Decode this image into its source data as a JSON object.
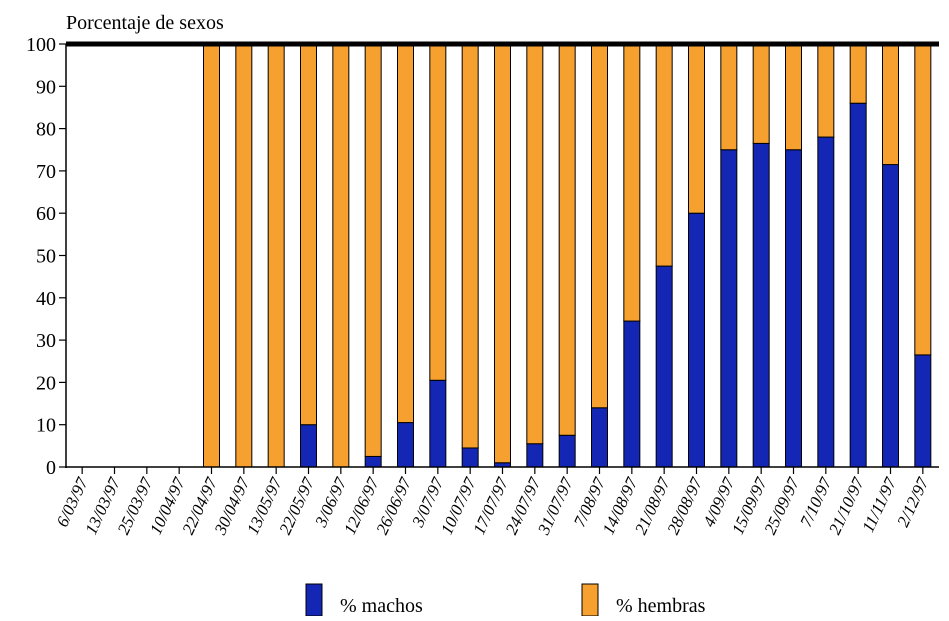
{
  "chart_data": {
    "type": "bar",
    "stacked": true,
    "title": "Porcentaje de sexos",
    "xlabel": "",
    "ylabel": "",
    "ylim": [
      0,
      100
    ],
    "yticks": [
      0,
      10,
      20,
      30,
      40,
      50,
      60,
      70,
      80,
      90,
      100
    ],
    "grid": false,
    "legend_position": "bottom",
    "categories": [
      "6/03/97",
      "13/03/97",
      "25/03/97",
      "10/04/97",
      "22/04/97",
      "30/04/97",
      "13/05/97",
      "22/05/97",
      "3/06/97",
      "12/06/97",
      "26/06/97",
      "3/07/97",
      "10/07/97",
      "17/07/97",
      "24/07/97",
      "31/07/97",
      "7/08/97",
      "14/08/97",
      "21/08/97",
      "28/08/97",
      "4/09/97",
      "15/09/97",
      "25/09/97",
      "7/10/97",
      "21/10/97",
      "11/11/97",
      "2/12/97"
    ],
    "series": [
      {
        "name": "% machos",
        "color": "#1426b4",
        "values": [
          0,
          0,
          0,
          0,
          0,
          0,
          0,
          10,
          0,
          2.5,
          10.5,
          20.5,
          4.5,
          1,
          5.5,
          7.5,
          14,
          34.5,
          47.5,
          60,
          75,
          76.5,
          75,
          78,
          86,
          71.5,
          26.5
        ]
      },
      {
        "name": "% hembras",
        "color": "#f6a030",
        "values": [
          0,
          0,
          0,
          0,
          100,
          100,
          100,
          90,
          100,
          97.5,
          89.5,
          79.5,
          95.5,
          99,
          94.5,
          92.5,
          86,
          65.5,
          52.5,
          40,
          25,
          23.5,
          25,
          22,
          14,
          28.5,
          73.5
        ]
      }
    ]
  }
}
